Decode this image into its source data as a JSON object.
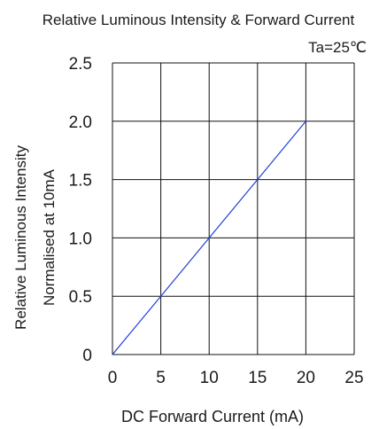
{
  "chart_data": {
    "type": "line",
    "title": "Relative Luminous Intensity & Forward Current",
    "subtitle": "Ta=25℃",
    "xlabel": "DC Forward Current (mA)",
    "ylabel": [
      "Relative Luminous Intensity",
      "Normalised at 10mA"
    ],
    "xlim": [
      0,
      25
    ],
    "ylim": [
      0,
      2.5
    ],
    "x_ticks": [
      0,
      5,
      10,
      15,
      20,
      25
    ],
    "x_tick_labels": [
      "0",
      "5",
      "10",
      "15",
      "20",
      "25"
    ],
    "y_ticks": [
      0,
      0.5,
      1.0,
      1.5,
      2.0,
      2.5
    ],
    "y_tick_labels": [
      "0",
      "0.5",
      "1.0",
      "1.5",
      "2.0",
      "2.5"
    ],
    "grid": true,
    "series": [
      {
        "x": [
          0,
          5,
          10,
          15,
          20
        ],
        "y": [
          0,
          0.5,
          1.0,
          1.5,
          2.0
        ],
        "color": "#1f3fd8"
      }
    ]
  }
}
